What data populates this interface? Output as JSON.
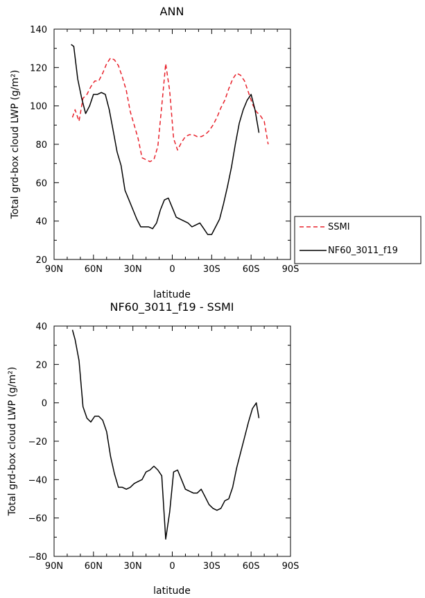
{
  "chart_data": [
    {
      "type": "line",
      "title": "ANN",
      "xlabel": "latitude",
      "ylabel": "Total grd-box cloud LWP (g/m²)",
      "xlim": [
        90,
        -90
      ],
      "ylim": [
        20,
        140
      ],
      "xticks": [
        90,
        60,
        30,
        0,
        -30,
        -60,
        -90
      ],
      "xtick_labels": [
        "90N",
        "60N",
        "30N",
        "0",
        "30S",
        "60S",
        "90S"
      ],
      "yticks": [
        20,
        40,
        60,
        80,
        100,
        120,
        140
      ],
      "ytick_labels": [
        "20",
        "40",
        "60",
        "80",
        "100",
        "120",
        "140"
      ],
      "legend_position": "right",
      "series": [
        {
          "name": "SSMI",
          "color": "#e8202a",
          "dash": "dashed",
          "x": [
            76,
            74,
            71,
            68,
            65,
            62,
            59,
            56,
            53,
            50,
            47,
            44,
            41,
            38,
            35,
            32,
            29,
            26,
            23,
            20,
            17,
            14,
            11,
            8,
            5,
            2,
            -1,
            -4,
            -7,
            -10,
            -13,
            -16,
            -19,
            -22,
            -25,
            -28,
            -31,
            -34,
            -37,
            -40,
            -43,
            -46,
            -49,
            -52,
            -55,
            -58,
            -61,
            -64,
            -67,
            -70,
            -73
          ],
          "y": [
            94,
            98,
            92,
            104,
            106,
            110,
            113,
            113,
            117,
            122,
            125,
            124,
            121,
            115,
            108,
            97,
            90,
            83,
            73,
            72,
            71,
            72,
            79,
            100,
            122,
            108,
            83,
            77,
            81,
            84,
            85,
            85,
            84,
            84,
            85,
            87,
            90,
            94,
            99,
            103,
            109,
            114,
            117,
            116,
            113,
            107,
            101,
            97,
            95,
            92,
            80
          ]
        },
        {
          "name": "NF60_3011_f19",
          "color": "#000000",
          "dash": "solid",
          "x": [
            77,
            75,
            72,
            69,
            66,
            63,
            60,
            57,
            54,
            51,
            48,
            45,
            42,
            39,
            36,
            33,
            30,
            27,
            24,
            21,
            18,
            15,
            12,
            9,
            6,
            3,
            0,
            -3,
            -6,
            -9,
            -12,
            -15,
            -18,
            -21,
            -24,
            -27,
            -30,
            -33,
            -36,
            -39,
            -42,
            -45,
            -48,
            -51,
            -54,
            -57,
            -60,
            -63,
            -66
          ],
          "y": [
            132,
            131,
            114,
            104,
            96,
            100,
            106,
            106,
            107,
            106,
            98,
            87,
            76,
            69,
            56,
            51,
            46,
            41,
            37,
            37,
            37,
            36,
            39,
            46,
            51,
            52,
            47,
            42,
            41,
            40,
            39,
            37,
            38,
            39,
            36,
            33,
            33,
            37,
            41,
            49,
            58,
            68,
            80,
            91,
            98,
            103,
            106,
            98,
            86
          ]
        }
      ]
    },
    {
      "type": "line",
      "title": "NF60_3011_f19 - SSMI",
      "xlabel": "latitude",
      "ylabel": "Total grd-box cloud LWP (g/m²)",
      "xlim": [
        90,
        -90
      ],
      "ylim": [
        -80,
        40
      ],
      "xticks": [
        90,
        60,
        30,
        0,
        -30,
        -60,
        -90
      ],
      "xtick_labels": [
        "90N",
        "60N",
        "30N",
        "0",
        "30S",
        "60S",
        "90S"
      ],
      "yticks": [
        -80,
        -60,
        -40,
        -20,
        0,
        20,
        40
      ],
      "ytick_labels": [
        "−80",
        "−60",
        "−40",
        "−20",
        "0",
        "20",
        "40"
      ],
      "series": [
        {
          "color": "#000000",
          "dash": "solid",
          "x": [
            76,
            74,
            71,
            68,
            65,
            62,
            59,
            56,
            53,
            50,
            47,
            44,
            41,
            38,
            35,
            32,
            29,
            26,
            23,
            20,
            17,
            14,
            11,
            8,
            5,
            2,
            -1,
            -4,
            -7,
            -10,
            -13,
            -16,
            -19,
            -22,
            -25,
            -28,
            -31,
            -34,
            -37,
            -40,
            -43,
            -46,
            -49,
            -52,
            -55,
            -58,
            -61,
            -64,
            -66
          ],
          "y": [
            38,
            33,
            22,
            -2,
            -8,
            -10,
            -7,
            -7,
            -9,
            -15,
            -28,
            -37,
            -44,
            -44,
            -45,
            -44,
            -42,
            -41,
            -40,
            -36,
            -35,
            -33,
            -35,
            -38,
            -71,
            -57,
            -36,
            -35,
            -40,
            -45,
            -46,
            -47,
            -47,
            -45,
            -49,
            -53,
            -55,
            -56,
            -55,
            -51,
            -50,
            -44,
            -34,
            -26,
            -18,
            -10,
            -3,
            0,
            -8
          ]
        }
      ]
    }
  ]
}
